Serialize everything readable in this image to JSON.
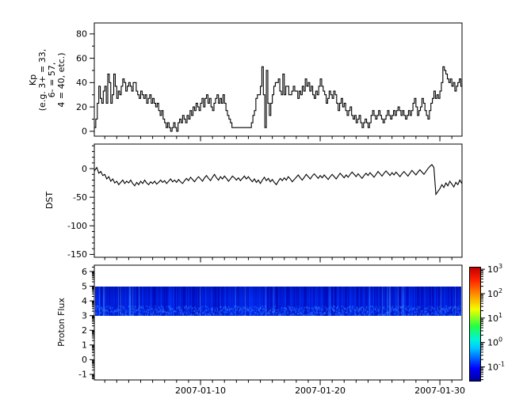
{
  "figure": {
    "title": "",
    "background": "#ffffff",
    "line_color": "#000000"
  },
  "chart_data": [
    {
      "type": "line",
      "name": "kp-index",
      "ylabel_lines": [
        "Kp",
        "(e.g. 3+ = 33,",
        "6- = 57,",
        "4 = 40, etc.)"
      ],
      "ylim": [
        -4,
        89
      ],
      "yticks": [
        0,
        20,
        40,
        60,
        80
      ],
      "y_minor_step": 10,
      "line_style": "steps, 3-hour cadence, black",
      "step_hours": 3,
      "start_date": "2007-01-01",
      "values": [
        7,
        3,
        10,
        23,
        37,
        27,
        23,
        33,
        37,
        23,
        47,
        40,
        23,
        30,
        47,
        37,
        27,
        33,
        30,
        37,
        43,
        40,
        33,
        37,
        40,
        37,
        33,
        40,
        40,
        33,
        30,
        27,
        33,
        30,
        27,
        30,
        23,
        27,
        30,
        23,
        27,
        23,
        20,
        23,
        17,
        13,
        17,
        10,
        7,
        3,
        7,
        3,
        0,
        3,
        7,
        3,
        0,
        7,
        10,
        7,
        13,
        10,
        7,
        13,
        10,
        17,
        13,
        20,
        17,
        23,
        20,
        17,
        23,
        27,
        20,
        27,
        30,
        23,
        27,
        20,
        17,
        23,
        27,
        30,
        23,
        27,
        23,
        30,
        23,
        17,
        13,
        10,
        7,
        3,
        3,
        3,
        3,
        3,
        3,
        3,
        3,
        3,
        3,
        3,
        3,
        3,
        7,
        13,
        17,
        27,
        30,
        30,
        37,
        53,
        30,
        3,
        50,
        23,
        13,
        23,
        30,
        37,
        40,
        40,
        43,
        33,
        30,
        47,
        30,
        37,
        37,
        30,
        30,
        33,
        37,
        33,
        33,
        27,
        33,
        30,
        37,
        33,
        43,
        37,
        40,
        33,
        37,
        30,
        27,
        33,
        30,
        37,
        43,
        37,
        33,
        30,
        23,
        27,
        33,
        30,
        27,
        33,
        30,
        23,
        17,
        23,
        27,
        20,
        23,
        17,
        13,
        17,
        20,
        13,
        10,
        13,
        7,
        10,
        13,
        7,
        3,
        7,
        10,
        7,
        3,
        7,
        13,
        17,
        13,
        10,
        13,
        17,
        13,
        10,
        7,
        10,
        13,
        17,
        13,
        10,
        13,
        17,
        13,
        17,
        20,
        17,
        13,
        17,
        13,
        10,
        13,
        17,
        13,
        17,
        23,
        27,
        20,
        13,
        17,
        20,
        27,
        23,
        17,
        13,
        10,
        17,
        23,
        27,
        33,
        27,
        30,
        27,
        33,
        40,
        53,
        50,
        47,
        43,
        40,
        43,
        37,
        40,
        33,
        37,
        40,
        43,
        37,
        40
      ]
    },
    {
      "type": "line",
      "name": "dst-index",
      "ylabel": "DST",
      "ylim": [
        -155,
        43
      ],
      "yticks": [
        0,
        -50,
        -100,
        -150
      ],
      "y_minor_step": 10,
      "line_style": "continuous, 4-hour cadence, black",
      "step_hours": 4,
      "start_date": "2007-01-01",
      "values": [
        5,
        -3,
        2,
        -8,
        -5,
        -12,
        -10,
        -18,
        -14,
        -22,
        -18,
        -25,
        -22,
        -28,
        -24,
        -20,
        -26,
        -22,
        -25,
        -20,
        -26,
        -30,
        -24,
        -28,
        -22,
        -26,
        -20,
        -25,
        -28,
        -23,
        -26,
        -22,
        -27,
        -24,
        -20,
        -24,
        -21,
        -26,
        -22,
        -18,
        -23,
        -20,
        -24,
        -19,
        -23,
        -26,
        -21,
        -17,
        -21,
        -15,
        -19,
        -23,
        -18,
        -14,
        -18,
        -22,
        -16,
        -12,
        -17,
        -21,
        -15,
        -10,
        -16,
        -20,
        -14,
        -18,
        -13,
        -17,
        -22,
        -18,
        -13,
        -16,
        -20,
        -16,
        -21,
        -17,
        -13,
        -18,
        -14,
        -19,
        -23,
        -18,
        -24,
        -20,
        -26,
        -20,
        -15,
        -21,
        -17,
        -23,
        -19,
        -24,
        -28,
        -22,
        -17,
        -21,
        -16,
        -20,
        -14,
        -18,
        -23,
        -19,
        -15,
        -11,
        -16,
        -20,
        -15,
        -10,
        -14,
        -18,
        -13,
        -9,
        -13,
        -17,
        -12,
        -16,
        -11,
        -15,
        -19,
        -14,
        -10,
        -14,
        -18,
        -13,
        -8,
        -12,
        -16,
        -11,
        -15,
        -10,
        -6,
        -10,
        -14,
        -9,
        -13,
        -17,
        -12,
        -8,
        -12,
        -7,
        -11,
        -15,
        -10,
        -5,
        -9,
        -13,
        -8,
        -4,
        -8,
        -12,
        -7,
        -11,
        -6,
        -10,
        -14,
        -9,
        -5,
        -9,
        -13,
        -8,
        -3,
        -7,
        -11,
        -6,
        -2,
        -6,
        -10,
        -5,
        0,
        4,
        7,
        2,
        -45,
        -40,
        -35,
        -28,
        -33,
        -25,
        -30,
        -22,
        -27,
        -32,
        -24,
        -28,
        -20,
        -26
      ]
    },
    {
      "type": "heatmap",
      "name": "proton-flux",
      "ylabel": "Proton Flux",
      "ylim": [
        -1.38,
        6.43
      ],
      "yticks": [
        -1,
        0,
        1,
        2,
        3,
        4,
        5,
        6
      ],
      "y_minor": "log decade subdivisions",
      "band": {
        "y_from": 3,
        "y_to": 5,
        "description": "continuous low-flux band across whole time range, dark blue with brighter blue vertical streaks (values ~0.03-0.3 on colorbar scale)",
        "base_color": "#0013c8",
        "streak_colors": [
          "#0033ff",
          "#2f7bff",
          "#55aaff"
        ]
      }
    }
  ],
  "x_axis": {
    "start_date": "2007-01-01",
    "tick_labels": [
      "2007-01-10",
      "2007-01-20",
      "2007-01-30"
    ],
    "tick_days": [
      9,
      19,
      29
    ],
    "minor_tick_interval_days": 1,
    "xlim_days": [
      0.125,
      30.85
    ]
  },
  "colorbar": {
    "scale": "log",
    "colormap": "jet",
    "tick_mantissa": "10",
    "tick_exponents": [
      3,
      2,
      1,
      0,
      -1
    ],
    "value_range_exponents": [
      3.1,
      -1.6
    ]
  }
}
